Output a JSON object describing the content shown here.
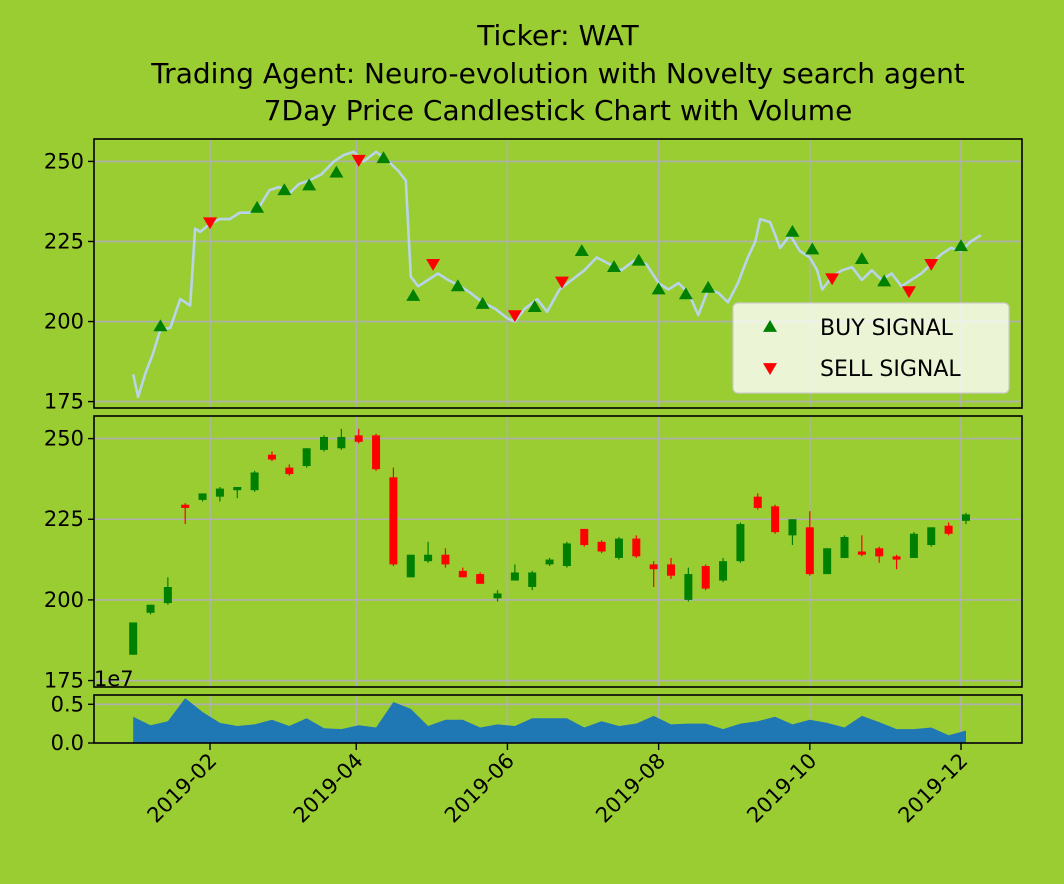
{
  "chart_data": {
    "type": "candlestick",
    "title_lines": [
      "Ticker: WAT",
      "Trading Agent: Neuro-evolution with Novelty search agent",
      "7Day Price Candlestick Chart with Volume"
    ],
    "colors": {
      "background": "#9acd32",
      "price_line": "#b8d4e8",
      "buy": "#008000",
      "sell": "#ff0000",
      "up_candle": "#008000",
      "down_candle": "#ff0000",
      "volume": "#1f77b4",
      "grid": "#b0b0b0"
    },
    "x_ticks": [
      "2019-02",
      "2019-04",
      "2019-06",
      "2019-08",
      "2019-10",
      "2019-12"
    ],
    "price_panel": {
      "ylim": [
        173,
        257
      ],
      "yticks": [
        175,
        200,
        225,
        250
      ],
      "line": [
        [
          "2019-01-01",
          183.5
        ],
        [
          "2019-01-03",
          176.5
        ],
        [
          "2019-01-06",
          184
        ],
        [
          "2019-01-09",
          190
        ],
        [
          "2019-01-12",
          197.5
        ],
        [
          "2019-01-16",
          198
        ],
        [
          "2019-01-20",
          207
        ],
        [
          "2019-01-24",
          205
        ],
        [
          "2019-01-26",
          229
        ],
        [
          "2019-01-28",
          228
        ],
        [
          "2019-02-01",
          230.5
        ],
        [
          "2019-02-05",
          232
        ],
        [
          "2019-02-09",
          232
        ],
        [
          "2019-02-13",
          234
        ],
        [
          "2019-02-17",
          234
        ],
        [
          "2019-02-21",
          236
        ],
        [
          "2019-02-25",
          241
        ],
        [
          "2019-03-01",
          242
        ],
        [
          "2019-03-05",
          240
        ],
        [
          "2019-03-09",
          243
        ],
        [
          "2019-03-13",
          244
        ],
        [
          "2019-03-18",
          246
        ],
        [
          "2019-03-23",
          250
        ],
        [
          "2019-03-27",
          252
        ],
        [
          "2019-03-31",
          253
        ],
        [
          "2019-04-04",
          250
        ],
        [
          "2019-04-09",
          253
        ],
        [
          "2019-04-14",
          250
        ],
        [
          "2019-04-18",
          247
        ],
        [
          "2019-04-21",
          244
        ],
        [
          "2019-04-23",
          214
        ],
        [
          "2019-04-26",
          211
        ],
        [
          "2019-04-30",
          213
        ],
        [
          "2019-05-04",
          215
        ],
        [
          "2019-05-08",
          213
        ],
        [
          "2019-05-13",
          211
        ],
        [
          "2019-05-17",
          209
        ],
        [
          "2019-05-22",
          206
        ],
        [
          "2019-05-27",
          204
        ],
        [
          "2019-06-01",
          201
        ],
        [
          "2019-06-04",
          200
        ],
        [
          "2019-06-08",
          204
        ],
        [
          "2019-06-13",
          207
        ],
        [
          "2019-06-17",
          203
        ],
        [
          "2019-06-22",
          210
        ],
        [
          "2019-06-27",
          213
        ],
        [
          "2019-07-02",
          216
        ],
        [
          "2019-07-07",
          220
        ],
        [
          "2019-07-12",
          218
        ],
        [
          "2019-07-17",
          216
        ],
        [
          "2019-07-22",
          219
        ],
        [
          "2019-07-27",
          218
        ],
        [
          "2019-08-01",
          212
        ],
        [
          "2019-08-05",
          210
        ],
        [
          "2019-08-09",
          212
        ],
        [
          "2019-08-13",
          209
        ],
        [
          "2019-08-17",
          202
        ],
        [
          "2019-08-21",
          210
        ],
        [
          "2019-08-25",
          209
        ],
        [
          "2019-08-29",
          206
        ],
        [
          "2019-09-02",
          212
        ],
        [
          "2019-09-06",
          220
        ],
        [
          "2019-09-09",
          225
        ],
        [
          "2019-09-11",
          232
        ],
        [
          "2019-09-15",
          231
        ],
        [
          "2019-09-19",
          223
        ],
        [
          "2019-09-23",
          227
        ],
        [
          "2019-09-27",
          222
        ],
        [
          "2019-10-01",
          220
        ],
        [
          "2019-10-04",
          216
        ],
        [
          "2019-10-06",
          210
        ],
        [
          "2019-10-10",
          214
        ],
        [
          "2019-10-14",
          216
        ],
        [
          "2019-10-18",
          217
        ],
        [
          "2019-10-22",
          213
        ],
        [
          "2019-10-26",
          216
        ],
        [
          "2019-10-30",
          213
        ],
        [
          "2019-11-03",
          215
        ],
        [
          "2019-11-07",
          211
        ],
        [
          "2019-11-11",
          213
        ],
        [
          "2019-11-15",
          215
        ],
        [
          "2019-11-19",
          218
        ],
        [
          "2019-11-23",
          221
        ],
        [
          "2019-11-27",
          223
        ],
        [
          "2019-12-01",
          222
        ],
        [
          "2019-12-05",
          225
        ],
        [
          "2019-12-09",
          227
        ]
      ],
      "buy_signals": [
        [
          "2019-01-12",
          198.5
        ],
        [
          "2019-02-20",
          235.5
        ],
        [
          "2019-03-03",
          241
        ],
        [
          "2019-03-13",
          242.5
        ],
        [
          "2019-03-24",
          246.5
        ],
        [
          "2019-04-12",
          251
        ],
        [
          "2019-04-24",
          208
        ],
        [
          "2019-05-12",
          211
        ],
        [
          "2019-05-22",
          205.5
        ],
        [
          "2019-06-12",
          204.5
        ],
        [
          "2019-07-01",
          222
        ],
        [
          "2019-07-14",
          217
        ],
        [
          "2019-07-24",
          219
        ],
        [
          "2019-08-01",
          210
        ],
        [
          "2019-08-12",
          208.5
        ],
        [
          "2019-08-21",
          210.5
        ],
        [
          "2019-09-24",
          228
        ],
        [
          "2019-10-02",
          222.5
        ],
        [
          "2019-10-22",
          219.5
        ],
        [
          "2019-10-31",
          212.5
        ],
        [
          "2019-12-01",
          223.5
        ]
      ],
      "sell_signals": [
        [
          "2019-02-01",
          231
        ],
        [
          "2019-04-02",
          250.5
        ],
        [
          "2019-05-02",
          218
        ],
        [
          "2019-06-04",
          202
        ],
        [
          "2019-06-23",
          212.5
        ],
        [
          "2019-10-10",
          213.5
        ],
        [
          "2019-11-10",
          209.5
        ],
        [
          "2019-11-19",
          218
        ]
      ],
      "legend": {
        "placement": "lower-right",
        "buy_label": "BUY SIGNAL",
        "sell_label": "SELL SIGNAL"
      }
    },
    "candle_panel": {
      "ylim": [
        173,
        257
      ],
      "yticks": [
        175,
        200,
        225,
        250
      ],
      "candles": [
        [
          "2019-01-01",
          183,
          193,
          183,
          193
        ],
        [
          "2019-01-08",
          196,
          198.5,
          195.5,
          198.5
        ],
        [
          "2019-01-15",
          199,
          207,
          198.5,
          204
        ],
        [
          "2019-01-22",
          229.5,
          230,
          223.5,
          228.5
        ],
        [
          "2019-01-29",
          231,
          233,
          230.5,
          233
        ],
        [
          "2019-02-05",
          232,
          235,
          230.5,
          234.5
        ],
        [
          "2019-02-12",
          234,
          235,
          231.5,
          235
        ],
        [
          "2019-02-19",
          234,
          240,
          233.5,
          239.5
        ],
        [
          "2019-02-26",
          245,
          246,
          243,
          243.5
        ],
        [
          "2019-03-05",
          241,
          242,
          238.5,
          239
        ],
        [
          "2019-03-12",
          241.5,
          247,
          241,
          247
        ],
        [
          "2019-03-19",
          246.5,
          251,
          246,
          250.5
        ],
        [
          "2019-03-26",
          247,
          253,
          246.5,
          250.5
        ],
        [
          "2019-04-02",
          251,
          253,
          248.5,
          249
        ],
        [
          "2019-04-09",
          251,
          251.5,
          240,
          240.5
        ],
        [
          "2019-04-16",
          238,
          241,
          210.5,
          211
        ],
        [
          "2019-04-23",
          207,
          214,
          207,
          214
        ],
        [
          "2019-04-30",
          212,
          218,
          211.5,
          214
        ],
        [
          "2019-05-07",
          214,
          216,
          210,
          211
        ],
        [
          "2019-05-14",
          209,
          210,
          207,
          207
        ],
        [
          "2019-05-21",
          208,
          208.5,
          205,
          205
        ],
        [
          "2019-05-28",
          200.5,
          203,
          199.5,
          202
        ],
        [
          "2019-06-04",
          206,
          211,
          206,
          208.5
        ],
        [
          "2019-06-11",
          204,
          209,
          203,
          208.5
        ],
        [
          "2019-06-18",
          211,
          213,
          210.5,
          212.5
        ],
        [
          "2019-06-25",
          210.5,
          218,
          210,
          217.5
        ],
        [
          "2019-07-02",
          222,
          222,
          216.5,
          217
        ],
        [
          "2019-07-09",
          218,
          218.5,
          214.5,
          215
        ],
        [
          "2019-07-16",
          213,
          219.5,
          212.5,
          219
        ],
        [
          "2019-07-23",
          219,
          220,
          213,
          213.5
        ],
        [
          "2019-07-30",
          211,
          212,
          204,
          209.5
        ],
        [
          "2019-08-06",
          211,
          213,
          206.5,
          207.5
        ],
        [
          "2019-08-13",
          200,
          210,
          199.5,
          208
        ],
        [
          "2019-08-20",
          210.5,
          211,
          203,
          203.5
        ],
        [
          "2019-08-27",
          206,
          213,
          205.5,
          212
        ],
        [
          "2019-09-03",
          212,
          224,
          211.5,
          223.5
        ],
        [
          "2019-09-10",
          232,
          233,
          228,
          228.5
        ],
        [
          "2019-09-17",
          229,
          229.5,
          220.5,
          221
        ],
        [
          "2019-09-24",
          220,
          225,
          217,
          225
        ],
        [
          "2019-10-01",
          222.5,
          227.5,
          207.5,
          208
        ],
        [
          "2019-10-08",
          208,
          216,
          208,
          216
        ],
        [
          "2019-10-15",
          213,
          220,
          213,
          219.5
        ],
        [
          "2019-10-22",
          215,
          220,
          213.5,
          214
        ],
        [
          "2019-10-29",
          216,
          216.5,
          211.5,
          213.5
        ],
        [
          "2019-11-05",
          213.5,
          214,
          209.5,
          212.5
        ],
        [
          "2019-11-12",
          213,
          221,
          213,
          220.5
        ],
        [
          "2019-11-19",
          217,
          222.5,
          216.5,
          222.5
        ],
        [
          "2019-11-26",
          223,
          224,
          220,
          220.5
        ],
        [
          "2019-12-03",
          224.5,
          227,
          223.5,
          226.5
        ]
      ]
    },
    "volume_panel": {
      "ylim": [
        0,
        0.62
      ],
      "yticks": [
        "0.0",
        "0.5"
      ],
      "offset_label": "1e7",
      "area": [
        [
          "2019-01-01",
          0.34
        ],
        [
          "2019-01-08",
          0.23
        ],
        [
          "2019-01-15",
          0.28
        ],
        [
          "2019-01-22",
          0.58
        ],
        [
          "2019-01-29",
          0.4
        ],
        [
          "2019-02-05",
          0.26
        ],
        [
          "2019-02-12",
          0.22
        ],
        [
          "2019-02-19",
          0.24
        ],
        [
          "2019-02-26",
          0.3
        ],
        [
          "2019-03-05",
          0.22
        ],
        [
          "2019-03-12",
          0.32
        ],
        [
          "2019-03-19",
          0.19
        ],
        [
          "2019-03-26",
          0.18
        ],
        [
          "2019-04-02",
          0.23
        ],
        [
          "2019-04-09",
          0.2
        ],
        [
          "2019-04-16",
          0.53
        ],
        [
          "2019-04-23",
          0.44
        ],
        [
          "2019-04-30",
          0.22
        ],
        [
          "2019-05-07",
          0.3
        ],
        [
          "2019-05-14",
          0.3
        ],
        [
          "2019-05-21",
          0.2
        ],
        [
          "2019-05-28",
          0.24
        ],
        [
          "2019-06-04",
          0.22
        ],
        [
          "2019-06-11",
          0.32
        ],
        [
          "2019-06-18",
          0.32
        ],
        [
          "2019-06-25",
          0.32
        ],
        [
          "2019-07-02",
          0.2
        ],
        [
          "2019-07-09",
          0.28
        ],
        [
          "2019-07-16",
          0.22
        ],
        [
          "2019-07-23",
          0.25
        ],
        [
          "2019-07-30",
          0.35
        ],
        [
          "2019-08-06",
          0.24
        ],
        [
          "2019-08-13",
          0.25
        ],
        [
          "2019-08-20",
          0.25
        ],
        [
          "2019-08-27",
          0.18
        ],
        [
          "2019-09-03",
          0.25
        ],
        [
          "2019-09-10",
          0.28
        ],
        [
          "2019-09-17",
          0.34
        ],
        [
          "2019-09-24",
          0.24
        ],
        [
          "2019-10-01",
          0.3
        ],
        [
          "2019-10-08",
          0.26
        ],
        [
          "2019-10-15",
          0.2
        ],
        [
          "2019-10-22",
          0.35
        ],
        [
          "2019-10-29",
          0.27
        ],
        [
          "2019-11-05",
          0.18
        ],
        [
          "2019-11-12",
          0.18
        ],
        [
          "2019-11-19",
          0.2
        ],
        [
          "2019-11-26",
          0.1
        ],
        [
          "2019-12-03",
          0.16
        ]
      ]
    }
  }
}
